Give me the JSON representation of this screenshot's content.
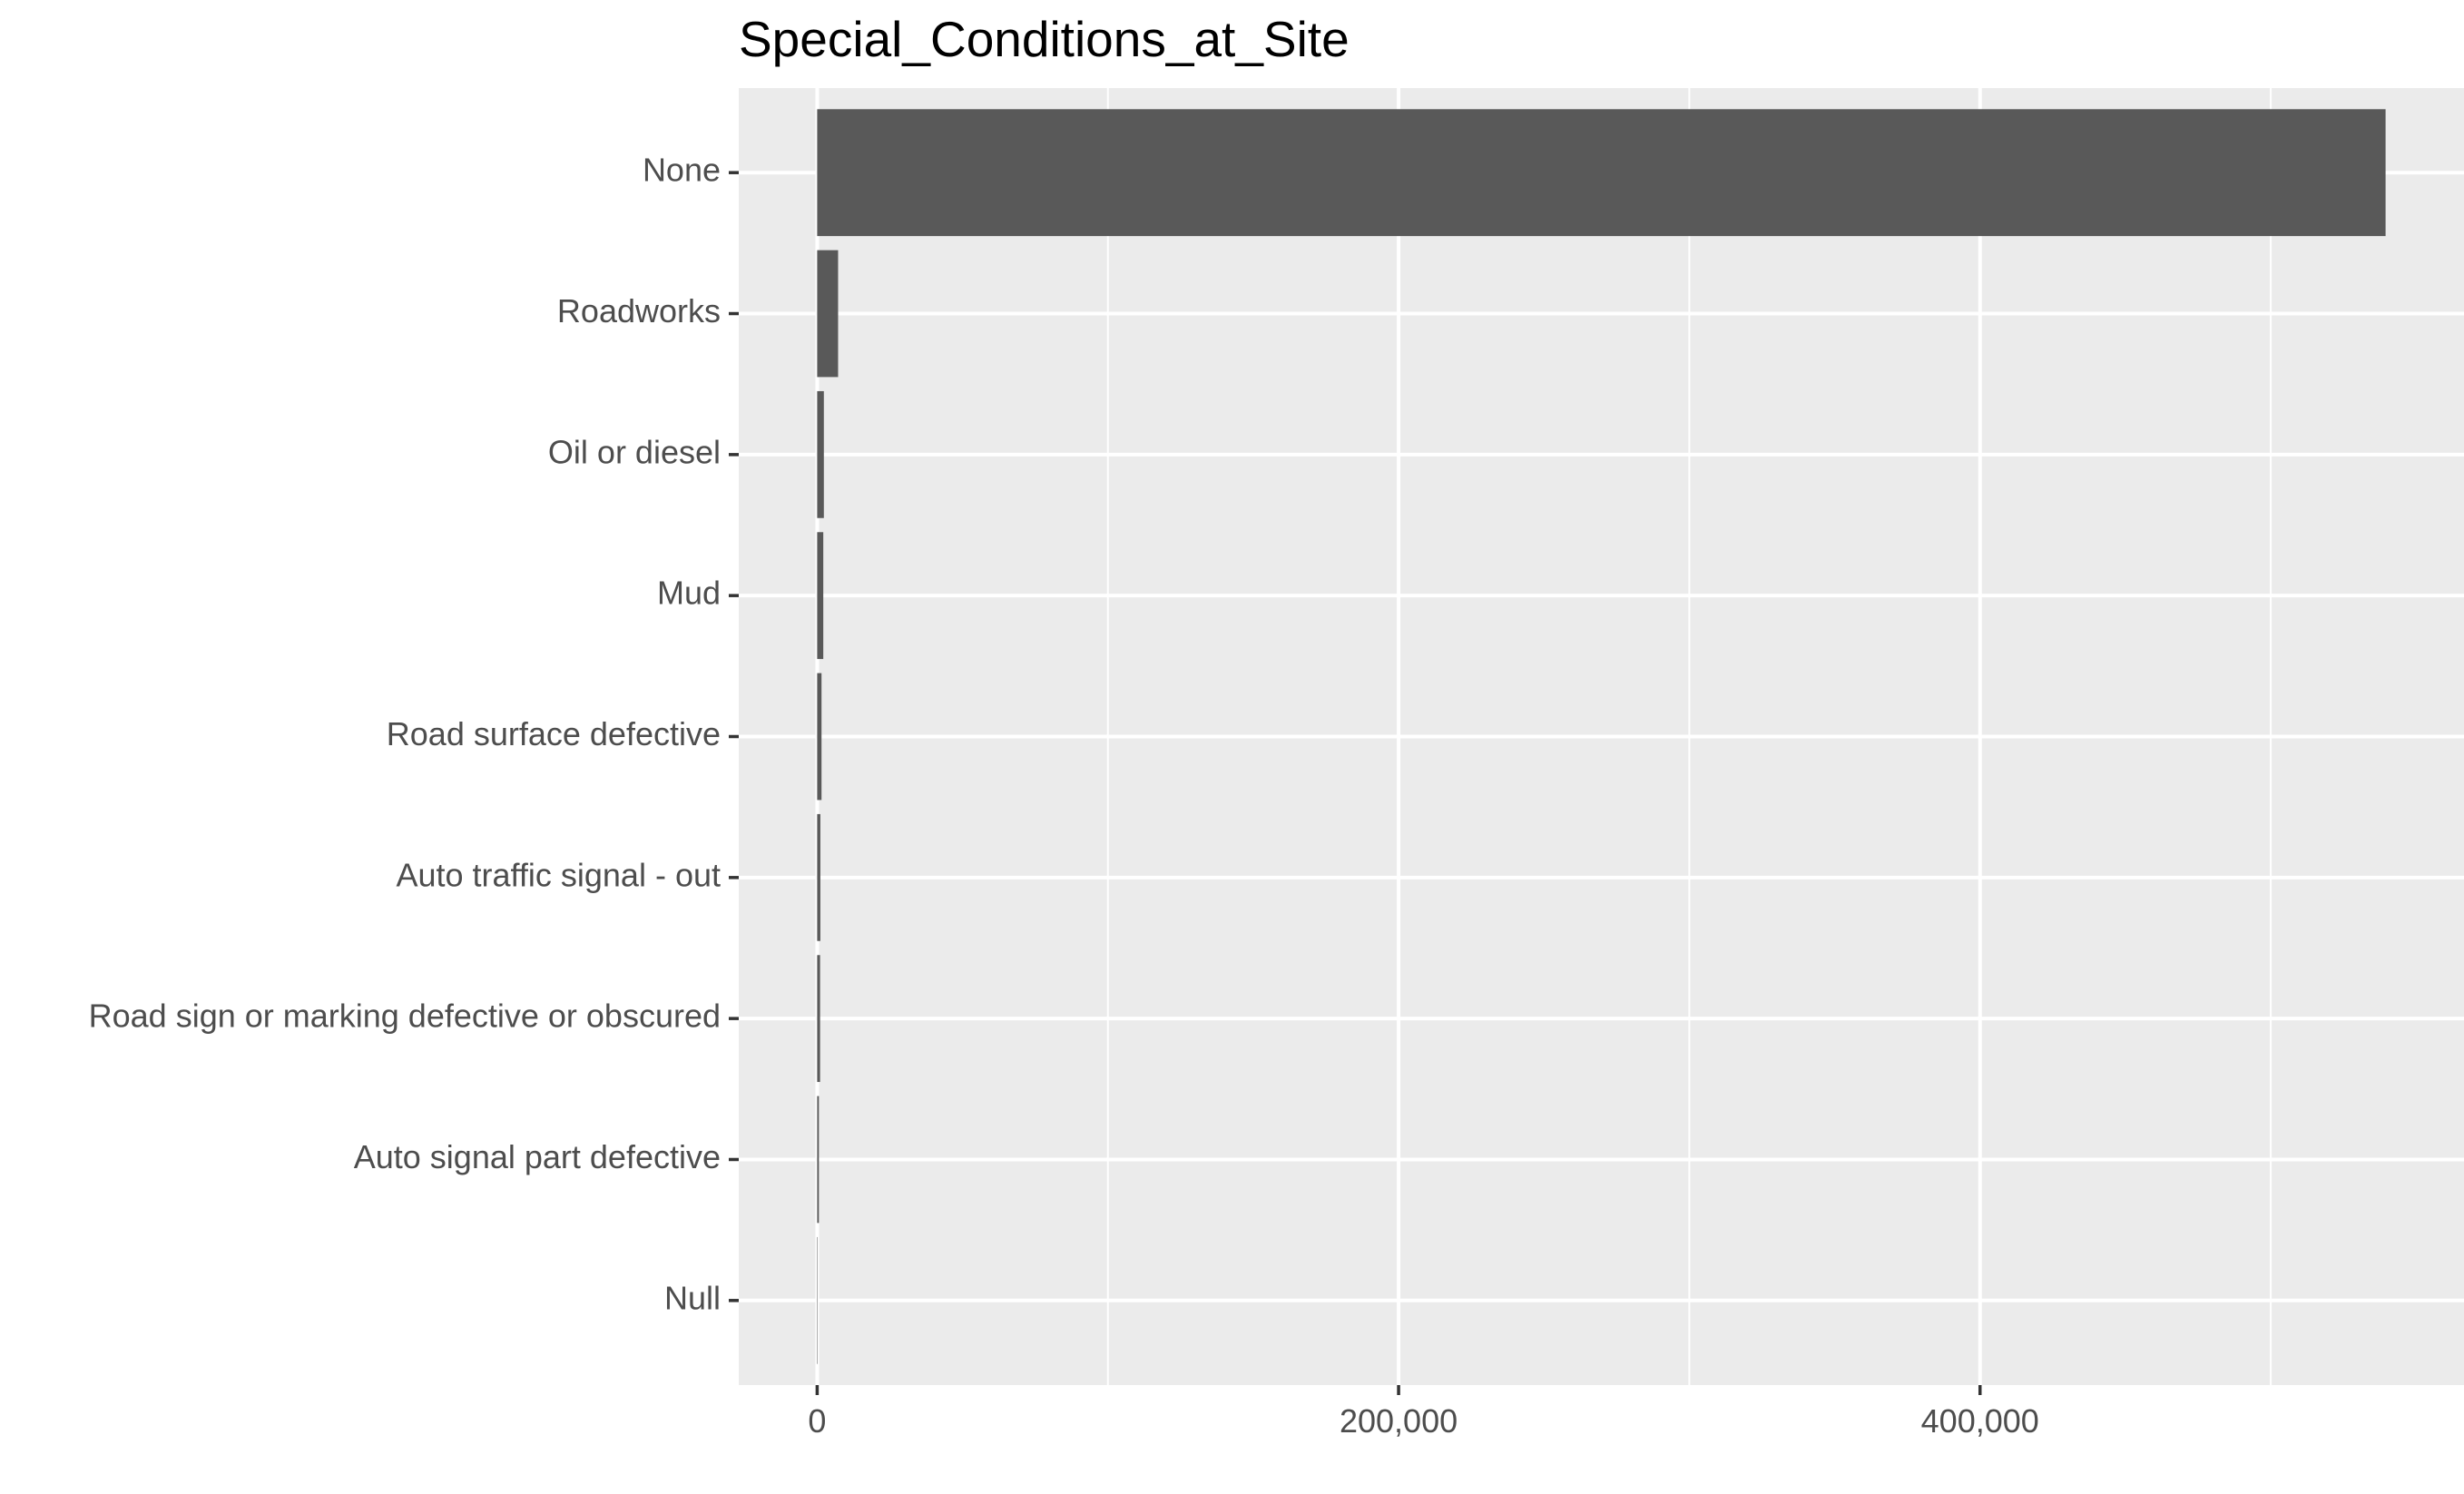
{
  "chart_data": {
    "type": "bar",
    "orientation": "horizontal",
    "title": "Special_Conditions_at_Site",
    "xlabel": "",
    "ylabel": "",
    "categories": [
      "None",
      "Roadworks",
      "Oil or diesel",
      "Mud",
      "Road surface defective",
      "Auto traffic signal - out",
      "Road sign or marking defective or obscured",
      "Auto signal part defective",
      "Null"
    ],
    "values": [
      539500,
      7200,
      2300,
      2100,
      1500,
      1100,
      1000,
      600,
      50
    ],
    "xlim": [
      -26975,
      566475
    ],
    "x_ticks": [
      0,
      200000,
      400000
    ],
    "x_tick_labels": [
      "0",
      "200,000",
      "400,000"
    ],
    "grid": true,
    "legend": "none",
    "colors": {
      "bar": "#595959",
      "panel": "#ebebeb",
      "grid": "#ffffff",
      "axis_text": "#4d4d4d",
      "title": "#000000"
    }
  }
}
